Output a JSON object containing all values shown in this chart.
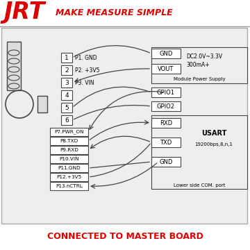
{
  "bg_color": "#ffffff",
  "board_bg": "#f0f0f0",
  "line_color": "#444444",
  "red_color": "#dd0000",
  "title_jrt": "JRT",
  "title_sub": "MAKE MEASURE SIMPLE",
  "bottom_text": "CONNECTED TO MASTER BOARD",
  "pin_labels_top": [
    "1",
    "2",
    "3",
    "4",
    "5",
    "6"
  ],
  "pin_names_top": [
    "P1. GND",
    "P2. +3V5",
    "P3. VIN",
    "",
    "",
    ""
  ],
  "pin_labels_bottom": [
    "P7.PWR_ON",
    "P8.TXD",
    "P9.RXD",
    "P10.VIN",
    "P11.GND",
    "P12.+3V5",
    "P13.nCTRL"
  ],
  "right_power_labels": [
    "GND",
    "VOUT"
  ],
  "right_gpio_labels": [
    "GPIO1",
    "GPIO2"
  ],
  "right_usart_labels": [
    "RXD",
    "TXD",
    "GND"
  ],
  "power_info1": "DC2.0V~3.3V",
  "power_info2": "300mA+",
  "power_group_label": "Module Power Supply",
  "usart_label": "USART",
  "usart_detail": "19200bps,8,n,1",
  "usart_port": "Lower side COM. port"
}
